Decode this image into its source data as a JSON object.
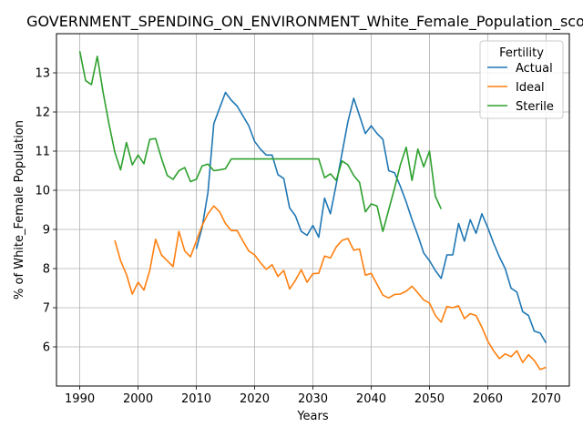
{
  "chart_data": {
    "type": "line",
    "title": "GOVERNMENT_SPENDING_ON_ENVIRONMENT_White_Female_Population_score",
    "xlabel": "Years",
    "ylabel": "% of White_Female Population",
    "xlim": [
      1986,
      2074
    ],
    "ylim": [
      5.0,
      14.0
    ],
    "xticks": [
      1990,
      2000,
      2010,
      2020,
      2030,
      2040,
      2050,
      2060,
      2070
    ],
    "yticks": [
      6,
      7,
      8,
      9,
      10,
      11,
      12,
      13
    ],
    "grid": true,
    "legend": {
      "title": "Fertility",
      "position": "top-right"
    },
    "series": [
      {
        "name": "Actual",
        "color": "#1f77b4",
        "x": [
          2010,
          2011,
          2012,
          2013,
          2014,
          2015,
          2016,
          2017,
          2018,
          2019,
          2020,
          2021,
          2022,
          2023,
          2024,
          2025,
          2026,
          2027,
          2028,
          2029,
          2030,
          2031,
          2032,
          2033,
          2034,
          2035,
          2036,
          2037,
          2038,
          2039,
          2040,
          2041,
          2042,
          2043,
          2044,
          2045,
          2046,
          2047,
          2048,
          2049,
          2050,
          2051,
          2052,
          2053,
          2054,
          2055,
          2056,
          2057,
          2058,
          2059,
          2060,
          2061,
          2062,
          2063,
          2064,
          2065,
          2066,
          2067,
          2068,
          2069,
          2070
        ],
        "y": [
          8.5,
          9.05,
          9.95,
          11.7,
          12.1,
          12.5,
          12.3,
          12.15,
          11.9,
          11.65,
          11.25,
          11.05,
          10.9,
          10.9,
          10.4,
          10.3,
          9.55,
          9.35,
          8.95,
          8.85,
          9.1,
          8.8,
          9.8,
          9.4,
          10.15,
          10.95,
          11.75,
          12.35,
          11.9,
          11.45,
          11.65,
          11.45,
          11.3,
          10.5,
          10.45,
          10.1,
          9.7,
          9.25,
          8.85,
          8.4,
          8.2,
          7.95,
          7.75,
          8.35,
          8.35,
          9.15,
          8.7,
          9.25,
          8.9,
          9.4,
          9.05,
          8.65,
          8.3,
          8.0,
          7.5,
          7.4,
          6.9,
          6.8,
          6.4,
          6.35,
          6.1
        ]
      },
      {
        "name": "Ideal",
        "color": "#ff7f0e",
        "x": [
          1996,
          1997,
          1998,
          1999,
          2000,
          2001,
          2002,
          2003,
          2004,
          2005,
          2006,
          2007,
          2008,
          2009,
          2010,
          2011,
          2012,
          2013,
          2014,
          2015,
          2016,
          2017,
          2018,
          2019,
          2020,
          2021,
          2022,
          2023,
          2024,
          2025,
          2026,
          2027,
          2028,
          2029,
          2030,
          2031,
          2032,
          2033,
          2034,
          2035,
          2036,
          2037,
          2038,
          2039,
          2040,
          2041,
          2042,
          2043,
          2044,
          2045,
          2046,
          2047,
          2048,
          2049,
          2050,
          2051,
          2052,
          2053,
          2054,
          2055,
          2056,
          2057,
          2058,
          2059,
          2060,
          2061,
          2062,
          2063,
          2064,
          2065,
          2066,
          2067,
          2068,
          2069,
          2070
        ],
        "y": [
          8.72,
          8.2,
          7.85,
          7.35,
          7.65,
          7.45,
          7.95,
          8.75,
          8.35,
          8.2,
          8.05,
          8.95,
          8.45,
          8.3,
          8.7,
          9.1,
          9.4,
          9.6,
          9.45,
          9.15,
          8.97,
          8.97,
          8.7,
          8.45,
          8.35,
          8.15,
          7.98,
          8.1,
          7.8,
          7.95,
          7.48,
          7.7,
          7.97,
          7.65,
          7.87,
          7.88,
          8.32,
          8.27,
          8.55,
          8.72,
          8.77,
          8.47,
          8.5,
          7.83,
          7.88,
          7.6,
          7.32,
          7.25,
          7.34,
          7.35,
          7.42,
          7.55,
          7.38,
          7.2,
          7.12,
          6.8,
          6.63,
          7.03,
          7.0,
          7.05,
          6.72,
          6.85,
          6.8,
          6.5,
          6.15,
          5.9,
          5.7,
          5.82,
          5.75,
          5.9,
          5.6,
          5.8,
          5.65,
          5.42,
          5.48
        ]
      },
      {
        "name": "Sterile",
        "color": "#2ca02c",
        "x": [
          1990,
          1991,
          1992,
          1993,
          1994,
          1995,
          1996,
          1997,
          1998,
          1999,
          2000,
          2001,
          2002,
          2003,
          2004,
          2005,
          2006,
          2007,
          2008,
          2009,
          2010,
          2011,
          2012,
          2013,
          2014,
          2015,
          2016,
          2017,
          2018,
          2019,
          2020,
          2021,
          2022,
          2023,
          2024,
          2025,
          2026,
          2027,
          2028,
          2029,
          2030,
          2031,
          2032,
          2033,
          2034,
          2035,
          2036,
          2037,
          2038,
          2039,
          2040,
          2041,
          2042,
          2043,
          2044,
          2045,
          2046,
          2047,
          2048,
          2049,
          2050,
          2051,
          2052
        ],
        "y": [
          13.55,
          12.8,
          12.7,
          13.42,
          12.5,
          11.7,
          10.98,
          10.52,
          11.22,
          10.65,
          10.9,
          10.68,
          11.3,
          11.32,
          10.82,
          10.38,
          10.28,
          10.5,
          10.58,
          10.22,
          10.28,
          10.62,
          10.67,
          10.5,
          10.52,
          10.55,
          10.8,
          10.8,
          10.8,
          10.8,
          10.8,
          10.8,
          10.8,
          10.8,
          10.8,
          10.8,
          10.8,
          10.8,
          10.8,
          10.8,
          10.8,
          10.8,
          10.32,
          10.42,
          10.25,
          10.75,
          10.65,
          10.38,
          10.2,
          9.45,
          9.65,
          9.6,
          8.95,
          9.5,
          10.05,
          10.65,
          11.1,
          10.25,
          11.05,
          10.6,
          11.0,
          9.85,
          9.52
        ]
      }
    ]
  }
}
